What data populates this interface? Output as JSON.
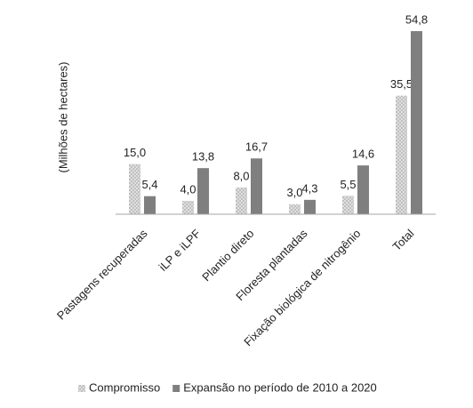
{
  "chart_data": {
    "type": "bar",
    "y_label": "(Milhões de hectares)",
    "categories": [
      "Pastagens recuperadas",
      "iLP e iLPF",
      "Plantio direto",
      "Floresta plantadas",
      "Fixação biológica de nitrogênio",
      "Total"
    ],
    "series": [
      {
        "name": "Compromisso",
        "color": "#bfbfbf",
        "values": [
          15.0,
          4.0,
          8.0,
          3.0,
          5.5,
          35.5
        ],
        "value_labels": [
          "15,0",
          "4,0",
          "8,0",
          "3,0",
          "5,5",
          "35,5"
        ]
      },
      {
        "name": "Expansão no período de 2010 a 2020",
        "color": "#7f7f7f",
        "values": [
          5.4,
          13.8,
          16.7,
          4.3,
          14.6,
          54.8
        ],
        "value_labels": [
          "5,4",
          "13,8",
          "16,7",
          "4,3",
          "14,6",
          "54,8"
        ]
      }
    ],
    "ylim": [
      0,
      58
    ],
    "grid": false,
    "legend": "bottom"
  }
}
